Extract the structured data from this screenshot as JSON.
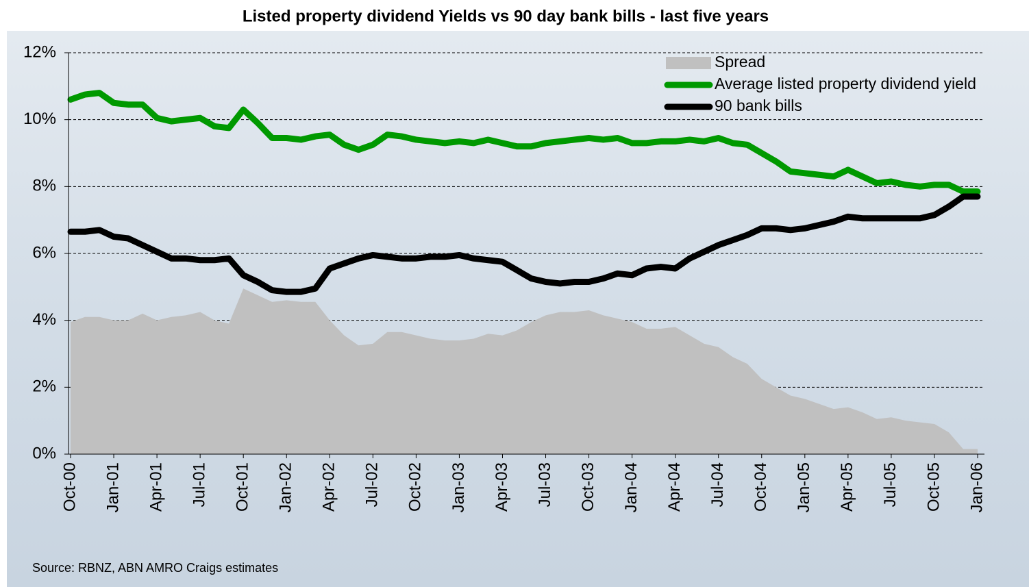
{
  "chart_data": {
    "type": "line",
    "title": "Listed property dividend Yields vs 90 day bank bills - last five years",
    "source": "Source:  RBNZ, ABN AMRO Craigs estimates",
    "categories": [
      "Oct-00",
      null,
      null,
      "Jan-01",
      null,
      null,
      "Apr-01",
      null,
      null,
      "Jul-01",
      null,
      null,
      "Oct-01",
      null,
      null,
      "Jan-02",
      null,
      null,
      "Apr-02",
      null,
      null,
      "Jul-02",
      null,
      null,
      "Oct-02",
      null,
      null,
      "Jan-03",
      null,
      null,
      "Apr-03",
      null,
      null,
      "Jul-03",
      null,
      null,
      "Oct-03",
      null,
      null,
      "Jan-04",
      null,
      null,
      "Apr-04",
      null,
      null,
      "Jul-04",
      null,
      null,
      "Oct-04",
      null,
      null,
      "Jan-05",
      null,
      null,
      "Apr-05",
      null,
      null,
      "Jul-05",
      null,
      null,
      "Oct-05",
      null,
      null,
      "Jan-06"
    ],
    "series": [
      {
        "name": "Spread",
        "type": "area",
        "color": "#c0c0c0",
        "values": [
          3.95,
          4.1,
          4.1,
          4.0,
          4.0,
          4.2,
          4.0,
          4.1,
          4.15,
          4.25,
          4.0,
          3.9,
          4.95,
          4.75,
          4.55,
          4.6,
          4.55,
          4.55,
          4.0,
          3.55,
          3.25,
          3.3,
          3.65,
          3.65,
          3.55,
          3.45,
          3.4,
          3.4,
          3.45,
          3.6,
          3.55,
          3.7,
          3.95,
          4.15,
          4.25,
          4.25,
          4.3,
          4.15,
          4.05,
          3.95,
          3.75,
          3.75,
          3.8,
          3.55,
          3.3,
          3.2,
          2.9,
          2.7,
          2.25,
          2.0,
          1.75,
          1.65,
          1.5,
          1.35,
          1.4,
          1.25,
          1.05,
          1.1,
          1.0,
          0.95,
          0.9,
          0.65,
          0.15,
          0.15
        ]
      },
      {
        "name": "Average listed property dividend yield",
        "type": "line",
        "color": "#009900",
        "values": [
          10.6,
          10.75,
          10.8,
          10.5,
          10.45,
          10.45,
          10.05,
          9.95,
          10.0,
          10.05,
          9.8,
          9.75,
          10.3,
          9.9,
          9.45,
          9.45,
          9.4,
          9.5,
          9.55,
          9.25,
          9.1,
          9.25,
          9.55,
          9.5,
          9.4,
          9.35,
          9.3,
          9.35,
          9.3,
          9.4,
          9.3,
          9.2,
          9.2,
          9.3,
          9.35,
          9.4,
          9.45,
          9.4,
          9.45,
          9.3,
          9.3,
          9.35,
          9.35,
          9.4,
          9.35,
          9.45,
          9.3,
          9.25,
          9.0,
          8.75,
          8.45,
          8.4,
          8.35,
          8.3,
          8.5,
          8.3,
          8.1,
          8.15,
          8.05,
          8.0,
          8.05,
          8.05,
          7.85,
          7.85
        ]
      },
      {
        "name": "90 bank bills",
        "type": "line",
        "color": "#000000",
        "values": [
          6.65,
          6.65,
          6.7,
          6.5,
          6.45,
          6.25,
          6.05,
          5.85,
          5.85,
          5.8,
          5.8,
          5.85,
          5.35,
          5.15,
          4.9,
          4.85,
          4.85,
          4.95,
          5.55,
          5.7,
          5.85,
          5.95,
          5.9,
          5.85,
          5.85,
          5.9,
          5.9,
          5.95,
          5.85,
          5.8,
          5.75,
          5.5,
          5.25,
          5.15,
          5.1,
          5.15,
          5.15,
          5.25,
          5.4,
          5.35,
          5.55,
          5.6,
          5.55,
          5.85,
          6.05,
          6.25,
          6.4,
          6.55,
          6.75,
          6.75,
          6.7,
          6.75,
          6.85,
          6.95,
          7.1,
          7.05,
          7.05,
          7.05,
          7.05,
          7.05,
          7.15,
          7.4,
          7.7,
          7.7
        ]
      }
    ],
    "ylim": [
      0,
      12
    ],
    "yticks": [
      {
        "value": 0,
        "label": "0%"
      },
      {
        "value": 2,
        "label": "2%"
      },
      {
        "value": 4,
        "label": "4%"
      },
      {
        "value": 6,
        "label": "6%"
      },
      {
        "value": 8,
        "label": "8%"
      },
      {
        "value": 10,
        "label": "10%"
      },
      {
        "value": 12,
        "label": "12%"
      }
    ],
    "grid": true,
    "legend": "top-right"
  }
}
